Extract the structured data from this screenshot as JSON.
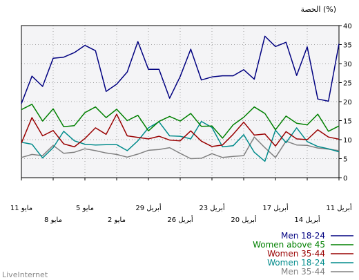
{
  "chart_data": {
    "type": "line",
    "ylabel": "الحصة (%)",
    "ylim": [
      0,
      40
    ],
    "yticks": [
      0,
      5,
      10,
      15,
      20,
      25,
      30,
      35,
      40
    ],
    "x_direction": "right-to-left",
    "grid": true,
    "legend_position": "bottom-right",
    "x_tick_labels_top": [
      "11 أبريل",
      "17 أبريل",
      "23 أبريل",
      "29 أبريل",
      "5 مايو",
      "11 مايو"
    ],
    "x_tick_labels_bottom": [
      "14 أبريل",
      "20 أبريل",
      "26 أبريل",
      "2 مايو",
      "8 مايو"
    ],
    "series": [
      {
        "name": "Men 18-24",
        "color": "#000080",
        "values": [
          19.5,
          26.7,
          24.0,
          31.4,
          31.7,
          32.9,
          34.8,
          33.4,
          22.7,
          24.6,
          27.8,
          35.8,
          28.5,
          28.5,
          20.9,
          26.6,
          33.8,
          25.7,
          26.5,
          26.8,
          26.8,
          28.4,
          25.9,
          37.2,
          34.5,
          35.6,
          26.9,
          34.4,
          20.7,
          20.1,
          35.2
        ]
      },
      {
        "name": "Women above 45",
        "color": "#008000",
        "values": [
          17.9,
          19.3,
          14.9,
          18.1,
          13.4,
          13.7,
          17.1,
          18.6,
          15.8,
          18.0,
          15.0,
          16.4,
          12.3,
          14.8,
          16.1,
          14.9,
          16.9,
          13.5,
          13.6,
          10.4,
          13.9,
          15.9,
          18.6,
          16.9,
          12.6,
          16.2,
          14.3,
          13.9,
          16.7,
          12.2,
          13.6
        ]
      },
      {
        "name": "Women 35-44",
        "color": "#990000",
        "values": [
          9.1,
          15.8,
          11.0,
          12.4,
          8.9,
          8.1,
          10.3,
          13.1,
          11.4,
          16.7,
          11.0,
          10.6,
          10.2,
          10.9,
          9.9,
          9.7,
          12.3,
          9.6,
          8.2,
          8.6,
          11.4,
          14.6,
          11.2,
          11.5,
          8.3,
          12.1,
          10.2,
          10.0,
          12.6,
          10.7,
          10.1
        ]
      },
      {
        "name": "Women 18-24",
        "color": "#008b8b",
        "values": [
          9.3,
          8.8,
          5.2,
          7.9,
          12.2,
          9.7,
          8.8,
          8.6,
          8.7,
          8.7,
          7.1,
          9.7,
          13.1,
          14.7,
          11.0,
          10.9,
          10.2,
          14.8,
          13.2,
          8.1,
          8.4,
          11.3,
          6.7,
          4.3,
          12.5,
          9.2,
          13.1,
          9.5,
          8.2,
          7.6,
          6.8
        ]
      },
      {
        "name": "Men 35-44",
        "color": "#808080",
        "values": [
          5.3,
          6.1,
          5.8,
          8.5,
          6.4,
          6.7,
          7.6,
          7.1,
          6.5,
          6.1,
          5.4,
          6.2,
          7.2,
          7.4,
          7.9,
          6.4,
          5.0,
          5.1,
          6.3,
          5.3,
          5.6,
          5.8,
          10.7,
          7.9,
          5.3,
          9.6,
          8.6,
          8.5,
          7.8,
          7.5,
          7.1
        ]
      }
    ]
  },
  "footer": {
    "brand": "LiveInternet"
  }
}
